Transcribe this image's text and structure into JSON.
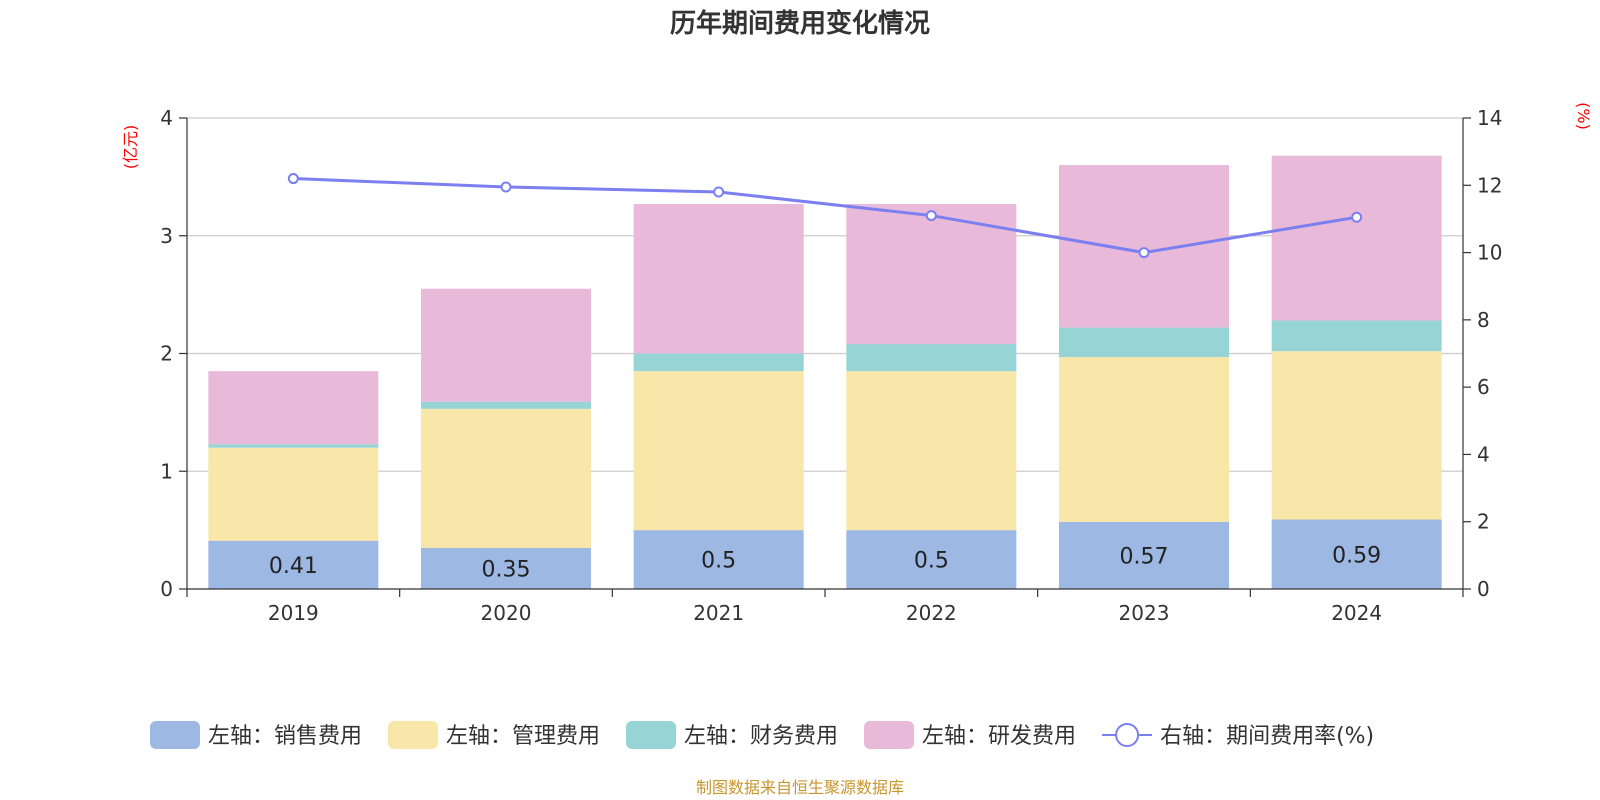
{
  "chart_data": {
    "type": "bar",
    "title": "历年期间费用变化情况",
    "categories": [
      "2019",
      "2020",
      "2021",
      "2022",
      "2023",
      "2024"
    ],
    "left_axis": {
      "unit": "(亿元)",
      "ylim": [
        0,
        4
      ],
      "ticks": [
        "0",
        "1",
        "2",
        "3",
        "4"
      ]
    },
    "right_axis": {
      "unit": "(%)",
      "ylim": [
        0,
        14
      ],
      "ticks": [
        "0",
        "2",
        "4",
        "6",
        "8",
        "10",
        "12",
        "14"
      ]
    },
    "series": [
      {
        "name": "左轴：销售费用",
        "type": "bar",
        "axis": "left",
        "color": "#9db8e3",
        "values": [
          0.41,
          0.35,
          0.5,
          0.5,
          0.57,
          0.59
        ],
        "labels": [
          "0.41",
          "0.35",
          "0.5",
          "0.5",
          "0.57",
          "0.59"
        ]
      },
      {
        "name": "左轴：管理费用",
        "type": "bar",
        "axis": "left",
        "color": "#f8e7a8",
        "values": [
          0.79,
          1.18,
          1.35,
          1.35,
          1.4,
          1.43
        ]
      },
      {
        "name": "左轴：财务费用",
        "type": "bar",
        "axis": "left",
        "color": "#97d4d5",
        "values": [
          0.03,
          0.06,
          0.15,
          0.23,
          0.25,
          0.26
        ]
      },
      {
        "name": "左轴：研发费用",
        "type": "bar",
        "axis": "left",
        "color": "#e8b9d9",
        "values": [
          0.62,
          0.96,
          1.27,
          1.19,
          1.38,
          1.4
        ]
      },
      {
        "name": "右轴：期间费用率(%)",
        "type": "line",
        "axis": "right",
        "color": "#7b7ff0",
        "values": [
          12.2,
          11.95,
          11.8,
          11.1,
          10.0,
          11.05
        ]
      }
    ],
    "colors": {
      "axis_unit": "#ff0000",
      "grid": "#cccccc",
      "axis_line": "#333333",
      "source": "#c8962e"
    }
  },
  "source_text": "制图数据来自恒生聚源数据库"
}
